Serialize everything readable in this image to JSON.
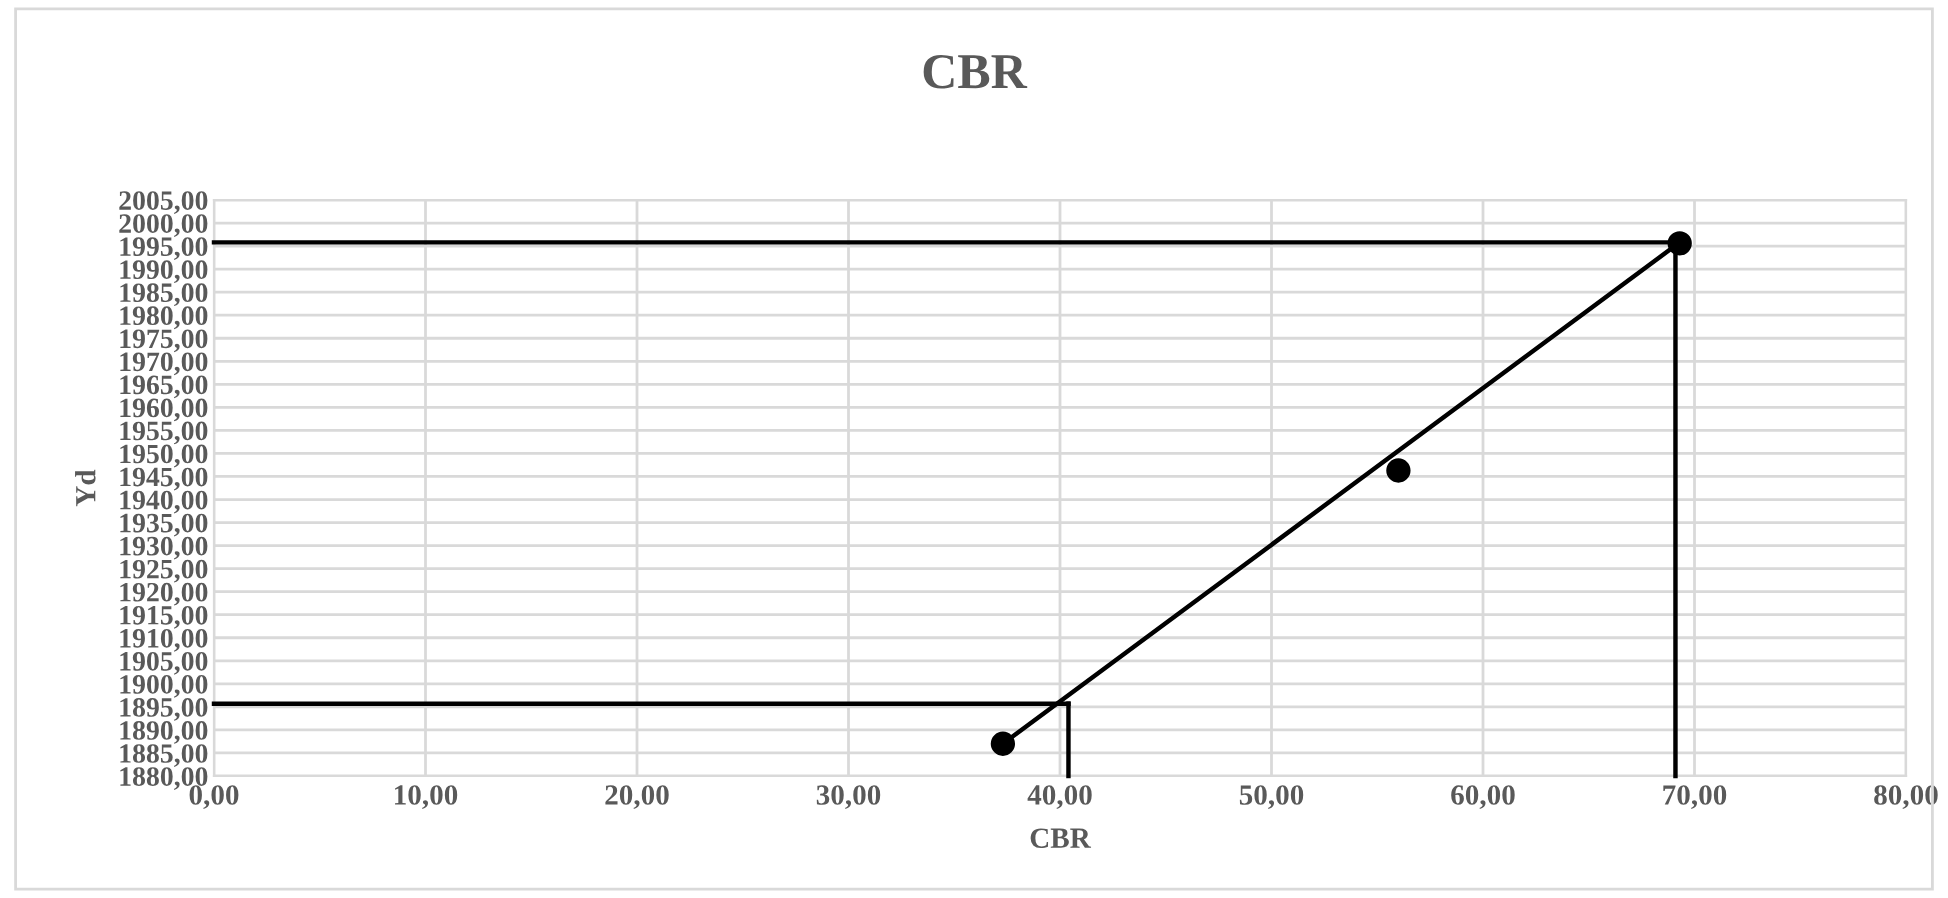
{
  "chart_data": {
    "type": "scatter",
    "title": "CBR",
    "xlabel": "CBR",
    "ylabel": "Yd",
    "series": [
      {
        "color": "#000000",
        "marker": "circle",
        "x": [
          37.3,
          56.0,
          69.3
        ],
        "values": [
          1887.0,
          1946.3,
          1995.6
        ]
      },
      {
        "type": "line",
        "color": "#000000",
        "marker": "none",
        "x": [
          37.3,
          69.3
        ],
        "values": [
          1887.0,
          1995.8
        ]
      },
      {
        "type": "line",
        "color": "#000000",
        "marker": "none",
        "x": [
          0,
          69.3
        ],
        "values": [
          1995.8,
          1995.8
        ]
      },
      {
        "type": "line",
        "color": "#000000",
        "marker": "none",
        "x": [
          69.1,
          69.1
        ],
        "values": [
          1995.8,
          1880
        ]
      },
      {
        "type": "line",
        "color": "#000000",
        "marker": "none",
        "x": [
          0,
          40.4
        ],
        "values": [
          1895.7,
          1895.7
        ]
      },
      {
        "type": "line",
        "color": "#000000",
        "marker": "none",
        "x": [
          40.4,
          40.4
        ],
        "values": [
          1895.7,
          1880
        ]
      }
    ],
    "xlim": [
      0,
      80
    ],
    "ylim": [
      1880,
      2005
    ],
    "xticks": [
      {
        "value": 0,
        "label": "0,00"
      },
      {
        "value": 10,
        "label": "10,00"
      },
      {
        "value": 20,
        "label": "20,00"
      },
      {
        "value": 30,
        "label": "30,00"
      },
      {
        "value": 40,
        "label": "40,00"
      },
      {
        "value": 50,
        "label": "50,00"
      },
      {
        "value": 60,
        "label": "60,00"
      },
      {
        "value": 70,
        "label": "70,00"
      },
      {
        "value": 80,
        "label": "80,00"
      }
    ],
    "yticks": [
      {
        "value": 1880,
        "label": "1880,00"
      },
      {
        "value": 1885,
        "label": "1885,00"
      },
      {
        "value": 1890,
        "label": "1890,00"
      },
      {
        "value": 1895,
        "label": "1895,00"
      },
      {
        "value": 1900,
        "label": "1900,00"
      },
      {
        "value": 1905,
        "label": "1905,00"
      },
      {
        "value": 1910,
        "label": "1910,00"
      },
      {
        "value": 1915,
        "label": "1915,00"
      },
      {
        "value": 1920,
        "label": "1920,00"
      },
      {
        "value": 1925,
        "label": "1925,00"
      },
      {
        "value": 1930,
        "label": "1930,00"
      },
      {
        "value": 1935,
        "label": "1935,00"
      },
      {
        "value": 1940,
        "label": "1940,00"
      },
      {
        "value": 1945,
        "label": "1945,00"
      },
      {
        "value": 1950,
        "label": "1950,00"
      },
      {
        "value": 1955,
        "label": "1955,00"
      },
      {
        "value": 1960,
        "label": "1960,00"
      },
      {
        "value": 1965,
        "label": "1965,00"
      },
      {
        "value": 1970,
        "label": "1970,00"
      },
      {
        "value": 1975,
        "label": "1975,00"
      },
      {
        "value": 1980,
        "label": "1980,00"
      },
      {
        "value": 1985,
        "label": "1985,00"
      },
      {
        "value": 1990,
        "label": "1990,00"
      },
      {
        "value": 1995,
        "label": "1995,00"
      },
      {
        "value": 2000,
        "label": "2000,00"
      },
      {
        "value": 2005,
        "label": "2005,00"
      }
    ],
    "grid": true
  }
}
